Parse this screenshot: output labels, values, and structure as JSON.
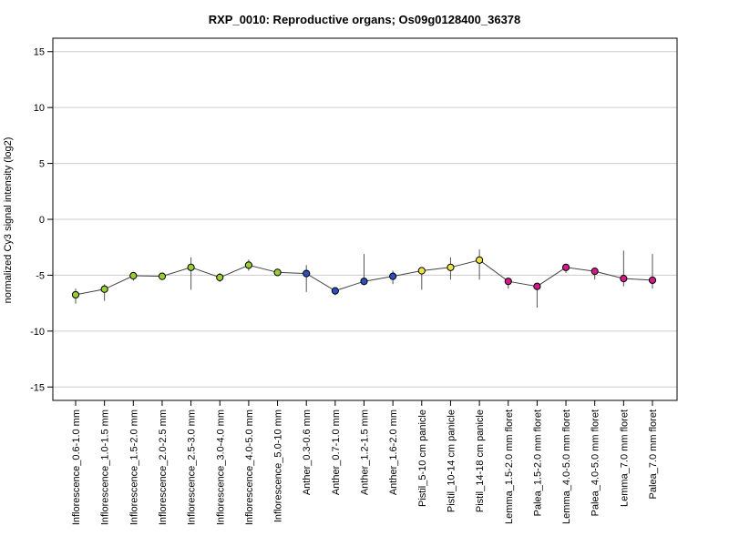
{
  "chart_data": {
    "type": "line",
    "title": "RXP_0010: Reproductive organs; Os09g0128400_36378",
    "xlabel": "",
    "ylabel": "normalized Cy3 signal intensity (log2)",
    "ylim": [
      -16.2,
      16.2
    ],
    "yticks": [
      -15,
      -10,
      -5,
      0,
      5,
      10,
      15
    ],
    "grid": "horizontal",
    "categories": [
      "Inflorescence_0.6-1.0 mm",
      "Inflorescence_1.0-1.5 mm",
      "Inflorescence_1.5-2.0 mm",
      "Inflorescence_2.0-2.5 mm",
      "Inflorescence_2.5-3.0 mm",
      "Inflorescence_3.0-4.0 mm",
      "Inflorescence_4.0-5.0 mm",
      "Inflorescence_5.0-10 mm",
      "Anther_0.3-0.6 mm",
      "Anther_0.7-1.0 mm",
      "Anther_1.2-1.5 mm",
      "Anther_1.6-2.0 mm",
      "Pistil_5-10 cm panicle",
      "Pistil_10-14 cm panicle",
      "Pistil_14-18 cm panicle",
      "Lemma_1.5-2.0 mm floret",
      "Palea_1.5-2.0 mm floret",
      "Lemma_4.0-5.0 mm floret",
      "Palea_4.0-5.0 mm floret",
      "Lemma_7.0 mm floret",
      "Palea_7.0 mm floret"
    ],
    "values": [
      -6.75,
      -6.25,
      -5.05,
      -5.1,
      -4.3,
      -5.2,
      -4.1,
      -4.75,
      -4.85,
      -6.4,
      -5.55,
      -5.1,
      -4.6,
      -4.3,
      -3.65,
      -5.55,
      -6.0,
      -4.3,
      -4.65,
      -5.3,
      -5.45
    ],
    "error_low": [
      -7.55,
      -7.3,
      -5.5,
      -5.3,
      -6.3,
      -5.6,
      -4.6,
      -5.0,
      -6.5,
      -6.8,
      -5.9,
      -5.8,
      -6.3,
      -5.4,
      -5.4,
      -6.2,
      -7.9,
      -4.8,
      -5.4,
      -6.0,
      -6.2
    ],
    "error_high": [
      -6.2,
      -5.8,
      -4.7,
      -4.9,
      -3.4,
      -4.8,
      -3.6,
      -4.5,
      -4.1,
      -6.1,
      -3.1,
      -4.6,
      -4.4,
      -3.4,
      -2.7,
      -5.3,
      -5.8,
      -4.1,
      -4.4,
      -2.8,
      -3.1
    ],
    "point_colors": [
      "#9acd32",
      "#9acd32",
      "#9acd32",
      "#9acd32",
      "#9acd32",
      "#9acd32",
      "#9acd32",
      "#9acd32",
      "#2b4fbf",
      "#2b4fbf",
      "#2b4fbf",
      "#2b4fbf",
      "#f0e442",
      "#f0e442",
      "#f0e442",
      "#d6198a",
      "#d6198a",
      "#d6198a",
      "#d6198a",
      "#d6198a",
      "#d6198a"
    ]
  }
}
